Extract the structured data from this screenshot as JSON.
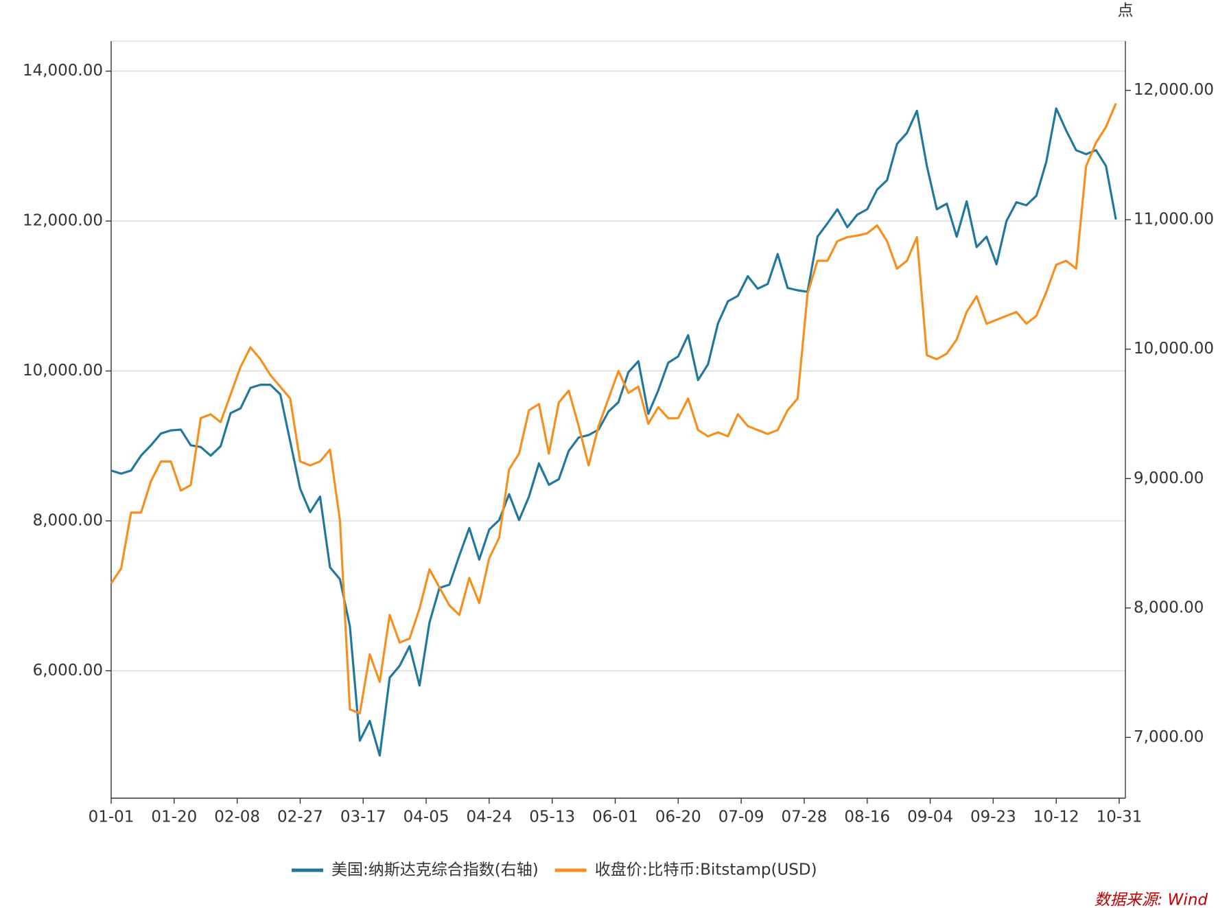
{
  "chart_data": {
    "type": "line",
    "unit_label": "点",
    "source": "数据来源: Wind",
    "x": [
      "01-01",
      "01-04",
      "01-07",
      "01-10",
      "01-13",
      "01-16",
      "01-19",
      "01-22",
      "01-25",
      "01-28",
      "01-31",
      "02-03",
      "02-06",
      "02-09",
      "02-12",
      "02-15",
      "02-18",
      "02-21",
      "02-24",
      "02-27",
      "03-01",
      "03-04",
      "03-07",
      "03-10",
      "03-13",
      "03-16",
      "03-19",
      "03-22",
      "03-25",
      "03-28",
      "03-31",
      "04-03",
      "04-06",
      "04-09",
      "04-12",
      "04-15",
      "04-18",
      "04-21",
      "04-24",
      "04-27",
      "04-30",
      "05-03",
      "05-06",
      "05-09",
      "05-12",
      "05-15",
      "05-18",
      "05-21",
      "05-24",
      "05-27",
      "05-30",
      "06-02",
      "06-05",
      "06-08",
      "06-11",
      "06-14",
      "06-17",
      "06-20",
      "06-23",
      "06-26",
      "06-29",
      "07-02",
      "07-05",
      "07-08",
      "07-11",
      "07-14",
      "07-17",
      "07-20",
      "07-23",
      "07-26",
      "07-29",
      "08-01",
      "08-04",
      "08-07",
      "08-10",
      "08-13",
      "08-16",
      "08-19",
      "08-22",
      "08-25",
      "08-28",
      "08-31",
      "09-03",
      "09-06",
      "09-09",
      "09-12",
      "09-15",
      "09-18",
      "09-21",
      "09-24",
      "09-27",
      "09-30",
      "10-03",
      "10-06",
      "10-09",
      "10-12",
      "10-15",
      "10-18",
      "10-21",
      "10-24",
      "10-27",
      "10-30"
    ],
    "xlim": [
      "01-01",
      "10-31"
    ],
    "xticks": [
      "01-01",
      "01-20",
      "02-08",
      "02-27",
      "03-17",
      "04-05",
      "04-24",
      "05-13",
      "06-01",
      "06-20",
      "07-09",
      "07-28",
      "08-16",
      "09-04",
      "09-23",
      "10-12",
      "10-31"
    ],
    "ylim": [
      4300,
      14400
    ],
    "yticks": [
      {
        "value": 6000,
        "label": "6,000.00"
      },
      {
        "value": 8000,
        "label": "8,000.00"
      },
      {
        "value": 10000,
        "label": "10,000.00"
      },
      {
        "value": 12000,
        "label": "12,000.00"
      },
      {
        "value": 14000,
        "label": "14,000.00"
      }
    ],
    "y2lim": [
      6530,
      12380
    ],
    "y2ticks": [
      {
        "value": 7000,
        "label": "7,000.00"
      },
      {
        "value": 8000,
        "label": "8,000.00"
      },
      {
        "value": 9000,
        "label": "9,000.00"
      },
      {
        "value": 10000,
        "label": "10,000.00"
      },
      {
        "value": 11000,
        "label": "11,000.00"
      },
      {
        "value": 12000,
        "label": "12,000.00"
      }
    ],
    "grid": true,
    "legend": "bottom",
    "series": [
      {
        "name": "美国:纳斯达克综合指数(右轴)",
        "color": "#22789c",
        "axis": "y2",
        "values": [
          9062,
          9038,
          9062,
          9177,
          9257,
          9348,
          9372,
          9378,
          9257,
          9244,
          9177,
          9250,
          9506,
          9542,
          9701,
          9725,
          9725,
          9652,
          9287,
          8922,
          8740,
          8861,
          8314,
          8222,
          7857,
          6975,
          7127,
          6860,
          7462,
          7553,
          7705,
          7401,
          7888,
          8155,
          8180,
          8405,
          8618,
          8374,
          8606,
          8679,
          8879,
          8679,
          8861,
          9117,
          8952,
          8995,
          9214,
          9317,
          9336,
          9378,
          9518,
          9591,
          9822,
          9907,
          9500,
          9682,
          9895,
          9944,
          10108,
          9761,
          9883,
          10199,
          10370,
          10412,
          10564,
          10467,
          10504,
          10735,
          10473,
          10455,
          10443,
          10869,
          10972,
          11081,
          10942,
          11039,
          11081,
          11233,
          11306,
          11586,
          11671,
          11842,
          11416,
          11081,
          11124,
          10869,
          11142,
          10789,
          10869,
          10656,
          10990,
          11136,
          11112,
          11185,
          11446,
          11860,
          11690,
          11538,
          11507,
          11538,
          11416,
          11002
        ]
      },
      {
        "name": "收盘价:比特币:Bitstamp(USD)",
        "color": "#f5901e",
        "values": [
          7165,
          7364,
          8110,
          8110,
          8530,
          8792,
          8792,
          8404,
          8477,
          9370,
          9422,
          9317,
          9685,
          10052,
          10315,
          10157,
          9947,
          9790,
          9632,
          8792,
          8740,
          8792,
          8950,
          8005,
          5485,
          5432,
          6220,
          5852,
          6745,
          6377,
          6430,
          6829,
          7354,
          7112,
          6871,
          6745,
          7238,
          6902,
          7501,
          7774,
          8687,
          8897,
          9475,
          9559,
          8897,
          9580,
          9737,
          9265,
          8740,
          9265,
          9632,
          10000,
          9706,
          9790,
          9296,
          9517,
          9370,
          9370,
          9632,
          9212,
          9128,
          9181,
          9128,
          9422,
          9265,
          9212,
          9160,
          9212,
          9475,
          9632,
          11029,
          11470,
          11470,
          11732,
          11785,
          11806,
          11837,
          11942,
          11732,
          11365,
          11470,
          11785,
          10210,
          10157,
          10231,
          10420,
          10787,
          10997,
          10630,
          10682,
          10735,
          10787,
          10630,
          10735,
          11050,
          11417,
          11470,
          11365,
          12730,
          13045,
          13255,
          13570
        ]
      }
    ]
  }
}
